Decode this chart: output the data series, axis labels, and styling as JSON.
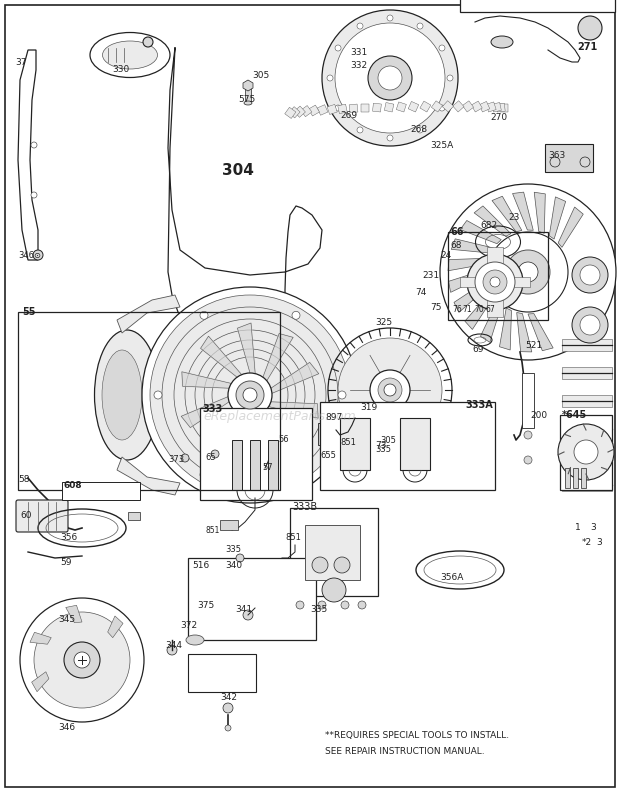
{
  "bg_color": "#ffffff",
  "fig_width": 6.2,
  "fig_height": 7.92,
  "dpi": 100,
  "watermark": "eReplacementParts.com",
  "footer_text1": "*REQUIRES SPECIAL TOOLS TO INSTALL.",
  "footer_text2": "SEE REPAIR INSTRUCTION MANUAL."
}
